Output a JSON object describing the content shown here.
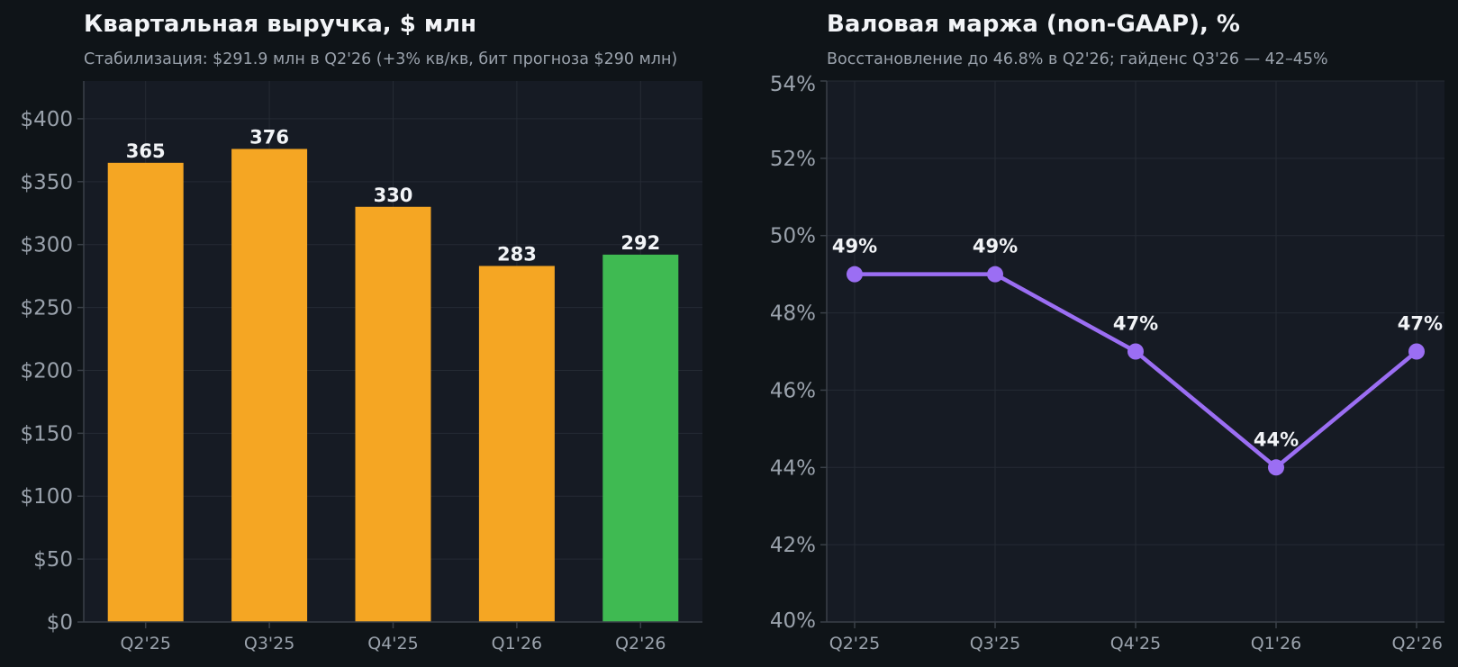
{
  "colors": {
    "page_bg": "#0f1418",
    "plot_bg": "#161b24",
    "bar_default": "#f5a623",
    "bar_highlight": "#3fba52",
    "line": "#9b6ef3"
  },
  "chart_data": [
    {
      "type": "bar",
      "title": "Квартальная выручка, $ млн",
      "subtitle": "Стабилизация: $291.9 млн в Q2'26 (+3% кв/кв, бит прогноза $290 млн)",
      "categories": [
        "Q2'25",
        "Q3'25",
        "Q4'25",
        "Q1'26",
        "Q2'26"
      ],
      "values": [
        365,
        376,
        330,
        283,
        292
      ],
      "data_labels": [
        "365",
        "376",
        "330",
        "283",
        "292"
      ],
      "highlight_index": 4,
      "ylim": [
        0,
        430
      ],
      "yticks": [
        0,
        50,
        100,
        150,
        200,
        250,
        300,
        350,
        400
      ],
      "ytick_labels": [
        "$0",
        "$50",
        "$100",
        "$150",
        "$200",
        "$250",
        "$300",
        "$350",
        "$400"
      ],
      "grid": true
    },
    {
      "type": "line",
      "title": "Валовая маржа (non-GAAP), %",
      "subtitle": "Восстановление до 46.8% в Q2'26; гайденс Q3'26 — 42–45%",
      "categories": [
        "Q2'25",
        "Q3'25",
        "Q4'25",
        "Q1'26",
        "Q2'26"
      ],
      "values": [
        49,
        49,
        47,
        44,
        47
      ],
      "data_labels": [
        "49%",
        "49%",
        "47%",
        "44%",
        "47%"
      ],
      "ylim": [
        40,
        54
      ],
      "yticks": [
        40,
        42,
        44,
        46,
        48,
        50,
        52,
        54
      ],
      "ytick_labels": [
        "40%",
        "42%",
        "44%",
        "46%",
        "48%",
        "50%",
        "52%",
        "54%"
      ],
      "grid": true
    }
  ]
}
